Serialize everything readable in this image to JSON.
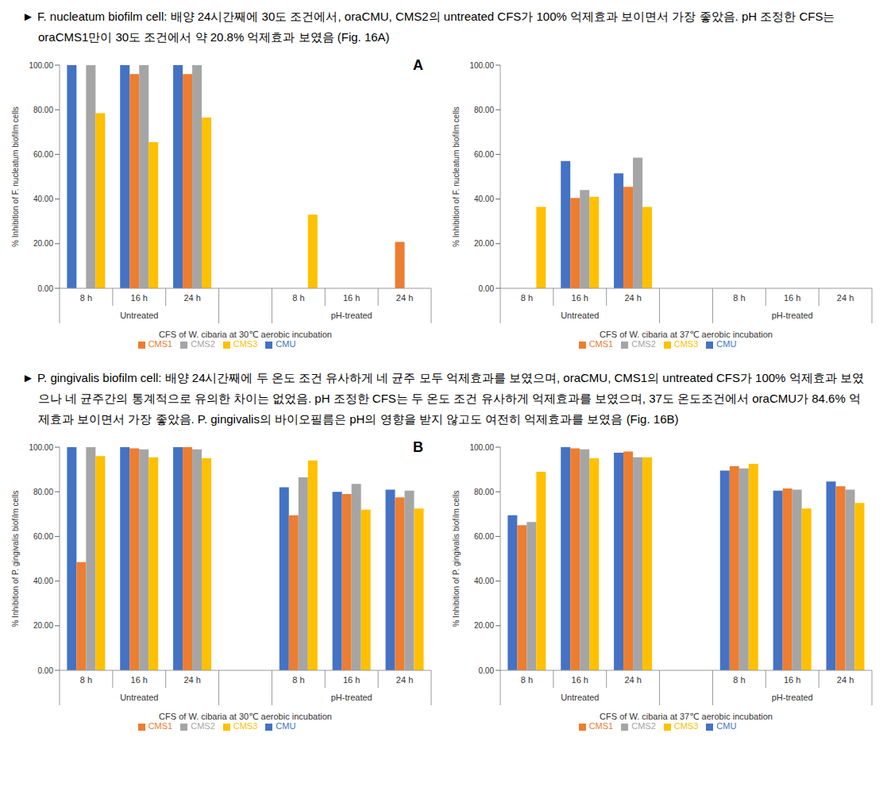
{
  "paragraphs": [
    "► F. nucleatum biofilm cell: 배양 24시간째에 30도 조건에서, oraCMU, CMS2의 untreated CFS가 100% 억제효과 보이면서 가장 좋았음. pH 조정한 CFS는 oraCMS1만이 30도 조건에서 약 20.8% 억제효과 보였음 (Fig. 16A)",
    "► P. gingivalis biofilm cell: 배양 24시간째에 두 온도 조건 유사하게 네 균주 모두 억제효과를 보였으며, oraCMU, CMS1의 untreated CFS가 100% 억제효과 보였으나 네 균주간의 통계적으로 유의한 차이는 없었음. pH 조정한 CFS는 두 온도 조건 유사하게 억제효과를 보였으며, 37도 온도조건에서 oraCMU가 84.6% 억제효과 보이면서 가장 좋았음. P. gingivalis의 바이오필름은 pH의 영향을 받지 않고도 여전히 억제효과를 보였음 (Fig. 16B)"
  ],
  "chart_data": [
    {
      "type": "bar",
      "annotation": "A",
      "xlabel": "CFS of W. cibaria at 30℃ aerobic incubation",
      "ylabel": "% Inhibition of F. nucleatum biofilm cells",
      "categories": [
        "8 h",
        "16 h",
        "24 h",
        null,
        "8 h",
        "16 h",
        "24 h"
      ],
      "category_groups": [
        "Untreated",
        "Untreated",
        "Untreated",
        null,
        "pH-treated",
        "pH-treated",
        "pH-treated"
      ],
      "ylim": [
        0,
        100
      ],
      "yticks": [
        {
          "value": 0,
          "label": "0.00"
        },
        {
          "value": 20,
          "label": "20.00"
        },
        {
          "value": 40,
          "label": "40.00"
        },
        {
          "value": 60,
          "label": "60.00"
        },
        {
          "value": 80,
          "label": "80.00"
        },
        {
          "value": 100,
          "label": "100.00"
        }
      ],
      "legend": "bottom",
      "series": [
        {
          "name": "CMU",
          "color": "#4472C4",
          "values": [
            100,
            100,
            100,
            null,
            0,
            0,
            0
          ]
        },
        {
          "name": "CMS1",
          "color": "#ED7D31",
          "values": [
            0,
            96,
            96,
            null,
            0,
            0,
            20.8
          ]
        },
        {
          "name": "CMS2",
          "color": "#A5A5A5",
          "values": [
            100,
            100,
            100,
            null,
            0,
            0,
            0
          ]
        },
        {
          "name": "CMS3",
          "color": "#FFC000",
          "values": [
            78.5,
            65.5,
            76.5,
            null,
            33,
            0,
            0
          ]
        }
      ]
    },
    {
      "type": "bar",
      "xlabel": "CFS of W. cibaria at 37℃ aerobic incubation",
      "ylabel": "% Inhibition of F. nucleatum biofilm cells",
      "categories": [
        "8 h",
        "16 h",
        "24 h",
        null,
        "8 h",
        "16 h",
        "24 h"
      ],
      "category_groups": [
        "Untreated",
        "Untreated",
        "Untreated",
        null,
        "pH-treated",
        "pH-treated",
        "pH-treated"
      ],
      "ylim": [
        0,
        100
      ],
      "yticks": [
        {
          "value": 0,
          "label": "0.00"
        },
        {
          "value": 20,
          "label": "20.00"
        },
        {
          "value": 40,
          "label": "40.00"
        },
        {
          "value": 60,
          "label": "60.00"
        },
        {
          "value": 80,
          "label": "80.00"
        },
        {
          "value": 100,
          "label": "100.00"
        }
      ],
      "legend": "bottom",
      "series": [
        {
          "name": "CMU",
          "color": "#4472C4",
          "values": [
            0,
            57,
            51.5,
            null,
            0,
            0,
            0
          ]
        },
        {
          "name": "CMS1",
          "color": "#ED7D31",
          "values": [
            0,
            40.5,
            45.5,
            null,
            0,
            0,
            0
          ]
        },
        {
          "name": "CMS2",
          "color": "#A5A5A5",
          "values": [
            0,
            44,
            58.5,
            null,
            0,
            0,
            0
          ]
        },
        {
          "name": "CMS3",
          "color": "#FFC000",
          "values": [
            36.5,
            41,
            36.5,
            null,
            0,
            0,
            0
          ]
        }
      ]
    },
    {
      "type": "bar",
      "annotation": "B",
      "xlabel": "CFS of W. cibaria at 30℃ aerobic incubation",
      "ylabel": "% Inhibition of P. gingivalis biofilm cells",
      "categories": [
        "8 h",
        "16 h",
        "24 h",
        null,
        "8 h",
        "16 h",
        "24 h"
      ],
      "category_groups": [
        "Untreated",
        "Untreated",
        "Untreated",
        null,
        "pH-treated",
        "pH-treated",
        "pH-treated"
      ],
      "ylim": [
        0,
        100
      ],
      "yticks": [
        {
          "value": 0,
          "label": "0.00"
        },
        {
          "value": 20,
          "label": "20.00"
        },
        {
          "value": 40,
          "label": "40.00"
        },
        {
          "value": 60,
          "label": "60.00"
        },
        {
          "value": 80,
          "label": "80.00"
        },
        {
          "value": 100,
          "label": "100.00"
        }
      ],
      "legend": "bottom",
      "series": [
        {
          "name": "CMU",
          "color": "#4472C4",
          "values": [
            100,
            100,
            100,
            null,
            82,
            80,
            81
          ]
        },
        {
          "name": "CMS1",
          "color": "#ED7D31",
          "values": [
            48.5,
            99.5,
            100,
            null,
            69.5,
            79,
            77.5
          ]
        },
        {
          "name": "CMS2",
          "color": "#A5A5A5",
          "values": [
            100,
            99,
            99,
            null,
            86.5,
            83.5,
            80.5
          ]
        },
        {
          "name": "CMS3",
          "color": "#FFC000",
          "values": [
            96,
            95.5,
            95,
            null,
            94,
            72,
            72.5
          ]
        }
      ]
    },
    {
      "type": "bar",
      "xlabel": "CFS of W. cibaria at 37℃ aerobic incubation",
      "ylabel": "% Inhibition of P. gingivalis biofilm cells",
      "categories": [
        "8 h",
        "16 h",
        "24 h",
        null,
        "8 h",
        "16 h",
        "24 h"
      ],
      "category_groups": [
        "Untreated",
        "Untreated",
        "Untreated",
        null,
        "pH-treated",
        "pH-treated",
        "pH-treated"
      ],
      "ylim": [
        0,
        100
      ],
      "yticks": [
        {
          "value": 0,
          "label": "0.00"
        },
        {
          "value": 20,
          "label": "20.00"
        },
        {
          "value": 40,
          "label": "40.00"
        },
        {
          "value": 60,
          "label": "60.00"
        },
        {
          "value": 80,
          "label": "80.00"
        },
        {
          "value": 100,
          "label": "100.00"
        }
      ],
      "legend": "bottom",
      "series": [
        {
          "name": "CMU",
          "color": "#4472C4",
          "values": [
            69.5,
            100,
            97.5,
            null,
            89.5,
            80.5,
            84.6
          ]
        },
        {
          "name": "CMS1",
          "color": "#ED7D31",
          "values": [
            65,
            99.5,
            98,
            null,
            91.5,
            81.5,
            82.5
          ]
        },
        {
          "name": "CMS2",
          "color": "#A5A5A5",
          "values": [
            66.5,
            99,
            95.5,
            null,
            90.5,
            81,
            81
          ]
        },
        {
          "name": "CMS3",
          "color": "#FFC000",
          "values": [
            89,
            95,
            95.5,
            null,
            92.5,
            72.5,
            75
          ]
        }
      ]
    }
  ]
}
